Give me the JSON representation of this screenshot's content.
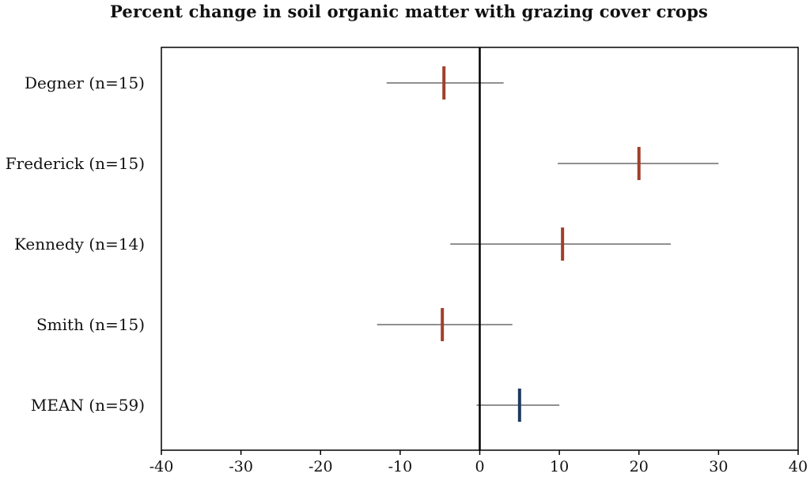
{
  "chart_data": {
    "type": "scatter",
    "title": "Percent change in soil organic matter with grazing cover crops",
    "xlabel": "",
    "ylabel": "",
    "xlim": [
      -40,
      40
    ],
    "xticks": [
      -40,
      -30,
      -20,
      -10,
      0,
      10,
      20,
      30,
      40
    ],
    "xtick_labels": [
      "-40",
      "-30",
      "-20",
      "-10",
      "0",
      "10",
      "20",
      "30",
      "40"
    ],
    "grid": false,
    "legend": "none",
    "categories": [
      "Degner (n=15)",
      "Frederick (n=15)",
      "Kennedy (n=14)",
      "Smith (n=15)",
      "MEAN (n=59)"
    ],
    "series": [
      {
        "points": [
          {
            "category": "Degner (n=15)",
            "value": -4.5,
            "low": -11.7,
            "high": 3.0
          },
          {
            "category": "Frederick (n=15)",
            "value": 20.0,
            "low": 9.8,
            "high": 30.0
          },
          {
            "category": "Kennedy (n=14)",
            "value": 10.4,
            "low": -3.7,
            "high": 24.0
          },
          {
            "category": "Smith (n=15)",
            "value": -4.7,
            "low": -12.9,
            "high": 4.1
          },
          {
            "category": "MEAN (n=59)",
            "value": 5.0,
            "low": -0.4,
            "high": 10.0
          }
        ]
      }
    ],
    "colors": {
      "study_marker": "#a0402a",
      "mean_marker": "#1f3a5f",
      "error_bar": "#808080",
      "zero_line": "#000000",
      "frame": "#000000"
    }
  }
}
